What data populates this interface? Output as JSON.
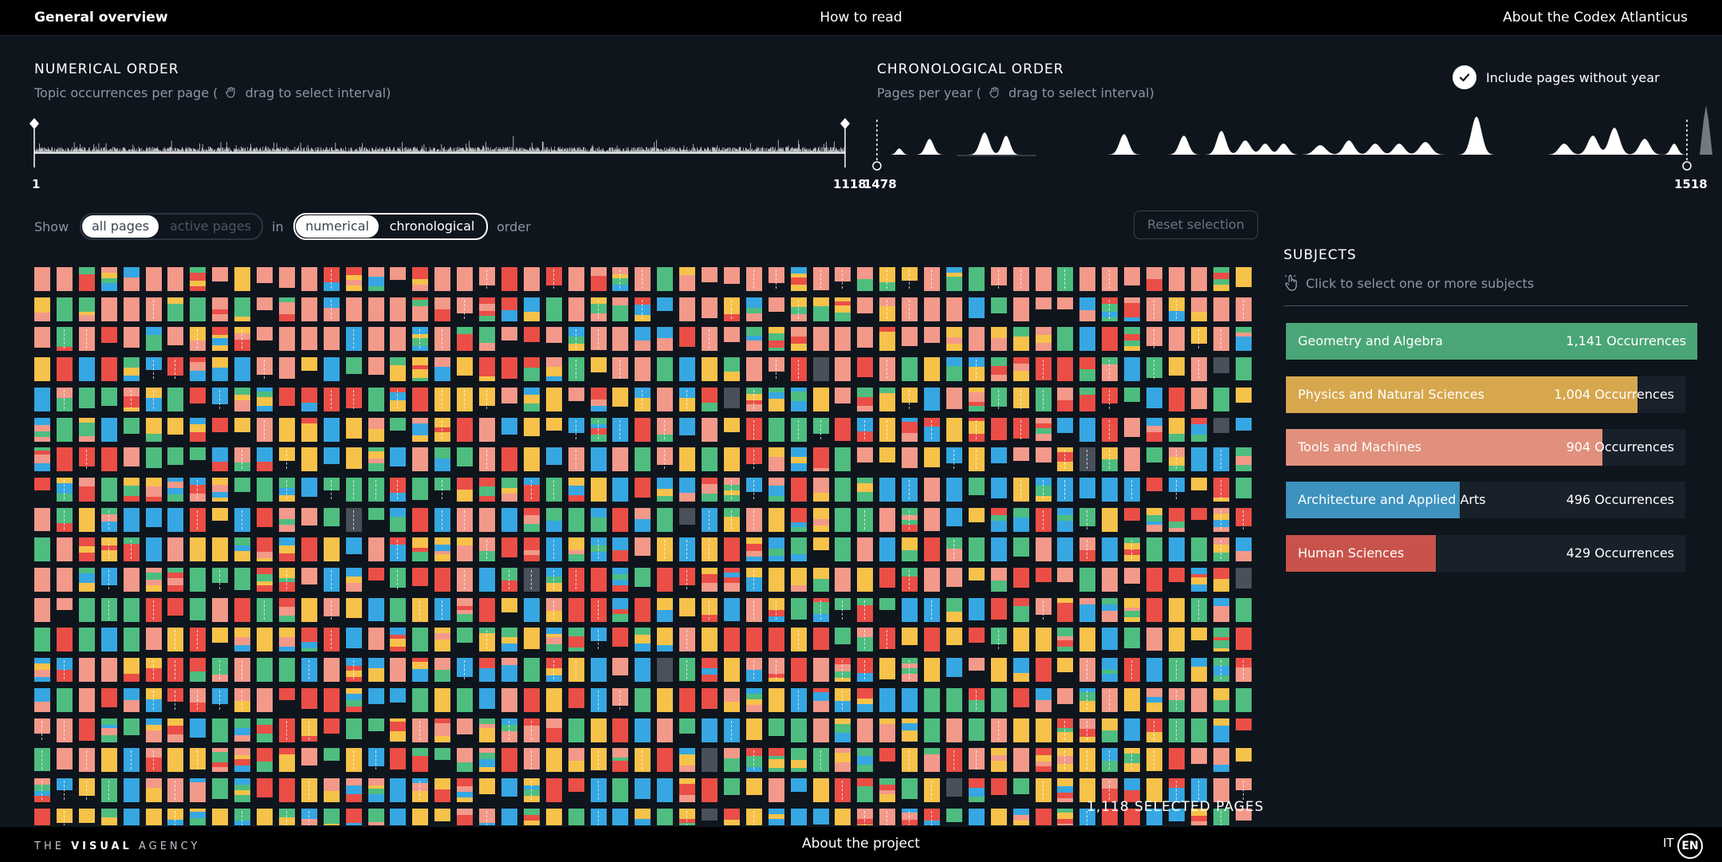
{
  "header": {
    "left": "General overview",
    "center": "How to read",
    "right": "About the Codex Atlanticus"
  },
  "numerical": {
    "title": "NUMERICAL ORDER",
    "subtitle_before": "Topic occurrences per page (",
    "subtitle_after": "drag to select interval)",
    "min": "1",
    "max": "1118"
  },
  "chronological": {
    "title": "CHRONOLOGICAL ORDER",
    "subtitle_before": "Pages per year (",
    "subtitle_after": "drag to select interval)",
    "min": "1478",
    "max": "1518"
  },
  "include_toggle": {
    "label": "Include pages without year",
    "checked": true
  },
  "controls": {
    "show": "Show",
    "all_pages": "all pages",
    "active_pages": "active pages",
    "in": "in",
    "numerical": "numerical",
    "chronological": "chronological",
    "order": "order",
    "reset": "Reset selection"
  },
  "selected_count": "1,118 SELECTED PAGES",
  "subjects": {
    "title": "SUBJECTS",
    "hint": "Click to select one or more subjects",
    "items": [
      {
        "name": "Geometry and Algebra",
        "count": "1,141 Occurrences",
        "value": 1141,
        "color": "#4aa677"
      },
      {
        "name": "Physics and Natural Sciences",
        "count": "1,004 Occurrences",
        "value": 1004,
        "color": "#d7a74e"
      },
      {
        "name": "Tools and Machines",
        "count": "904 Occurrences",
        "value": 904,
        "color": "#e0907c"
      },
      {
        "name": "Architecture and Applied Arts",
        "count": "496 Occurrences",
        "value": 496,
        "color": "#3d92be"
      },
      {
        "name": "Human Sciences",
        "count": "429 Occurrences",
        "value": 429,
        "color": "#c9534b"
      }
    ]
  },
  "page_colors": {
    "geometry": "#4ebd7f",
    "physics": "#f7c24a",
    "tools": "#f3998a",
    "architecture": "#36a7e2",
    "human": "#ea4e46",
    "none": "#4a5059"
  },
  "footer": {
    "brand_pre": "THE",
    "brand_bold": "VISUAL",
    "brand_post": "AGENCY",
    "about": "About the project",
    "lang_it": "IT",
    "lang_en": "EN"
  }
}
